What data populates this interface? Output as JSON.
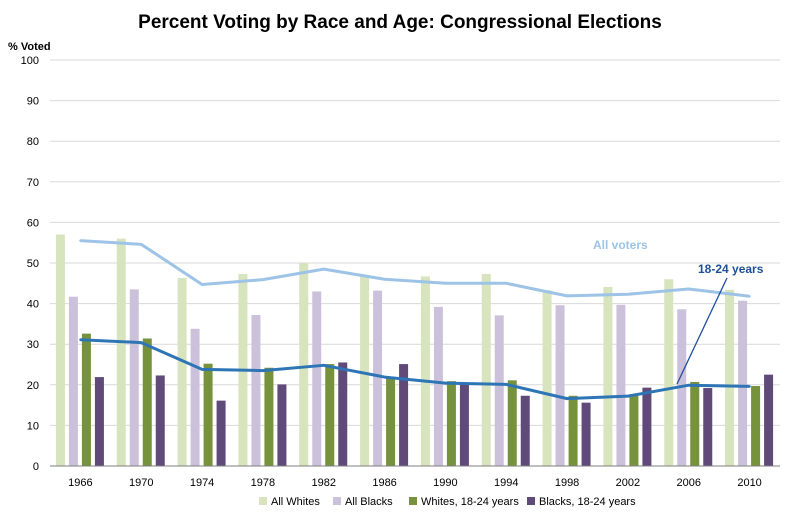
{
  "chart_data": {
    "type": "bar",
    "title": "Percent Voting by Race and Age:  Congressional Elections",
    "ylabel": "% Voted",
    "xlabel": "",
    "ylim": [
      0,
      100
    ],
    "yticks": [
      0,
      10,
      20,
      30,
      40,
      50,
      60,
      70,
      80,
      90,
      100
    ],
    "categories": [
      "1966",
      "1970",
      "1974",
      "1978",
      "1982",
      "1986",
      "1990",
      "1994",
      "1998",
      "2002",
      "2006",
      "2010"
    ],
    "series": [
      {
        "name": "All Whites",
        "kind": "bar",
        "color": "#d7e4bd",
        "values": [
          57.0,
          56.0,
          46.3,
          47.3,
          49.9,
          47.0,
          46.7,
          47.3,
          43.3,
          44.1,
          46.0,
          43.4
        ]
      },
      {
        "name": "All Blacks",
        "kind": "bar",
        "color": "#ccc1da",
        "values": [
          41.7,
          43.5,
          33.8,
          37.2,
          43.0,
          43.2,
          39.2,
          37.1,
          39.6,
          39.7,
          38.6,
          40.7
        ]
      },
      {
        "name": "Whites, 18-24 years",
        "kind": "bar",
        "color": "#76923c",
        "values": [
          32.6,
          31.4,
          25.2,
          24.2,
          25.1,
          21.8,
          20.9,
          21.1,
          17.3,
          17.7,
          20.7,
          19.7
        ]
      },
      {
        "name": "Blacks, 18-24 years",
        "kind": "bar",
        "color": "#5f4a7a",
        "values": [
          21.9,
          22.3,
          16.1,
          20.1,
          25.5,
          25.1,
          20.3,
          17.3,
          15.6,
          19.3,
          19.2,
          22.5
        ]
      },
      {
        "name": "All voters",
        "kind": "line",
        "color": "#9dc3e6",
        "values": [
          55.5,
          54.6,
          44.7,
          45.9,
          48.5,
          46.0,
          45.0,
          45.0,
          41.9,
          42.3,
          43.6,
          41.8
        ]
      },
      {
        "name": "18-24 years",
        "kind": "line",
        "color": "#2e75b6",
        "values": [
          31.1,
          30.4,
          23.8,
          23.5,
          24.8,
          21.9,
          20.4,
          20.1,
          16.6,
          17.2,
          19.9,
          19.6
        ]
      }
    ],
    "legend": [
      "All Whites",
      "All Blacks",
      "Whites, 18-24 years",
      "Blacks, 18-24 years"
    ],
    "legend_position": "bottom",
    "annotations": [
      {
        "text": "All voters",
        "series": "All voters",
        "color": "#9dc3e6"
      },
      {
        "text": "18-24 years",
        "series": "18-24 years",
        "color": "#1f4e9b"
      }
    ]
  }
}
